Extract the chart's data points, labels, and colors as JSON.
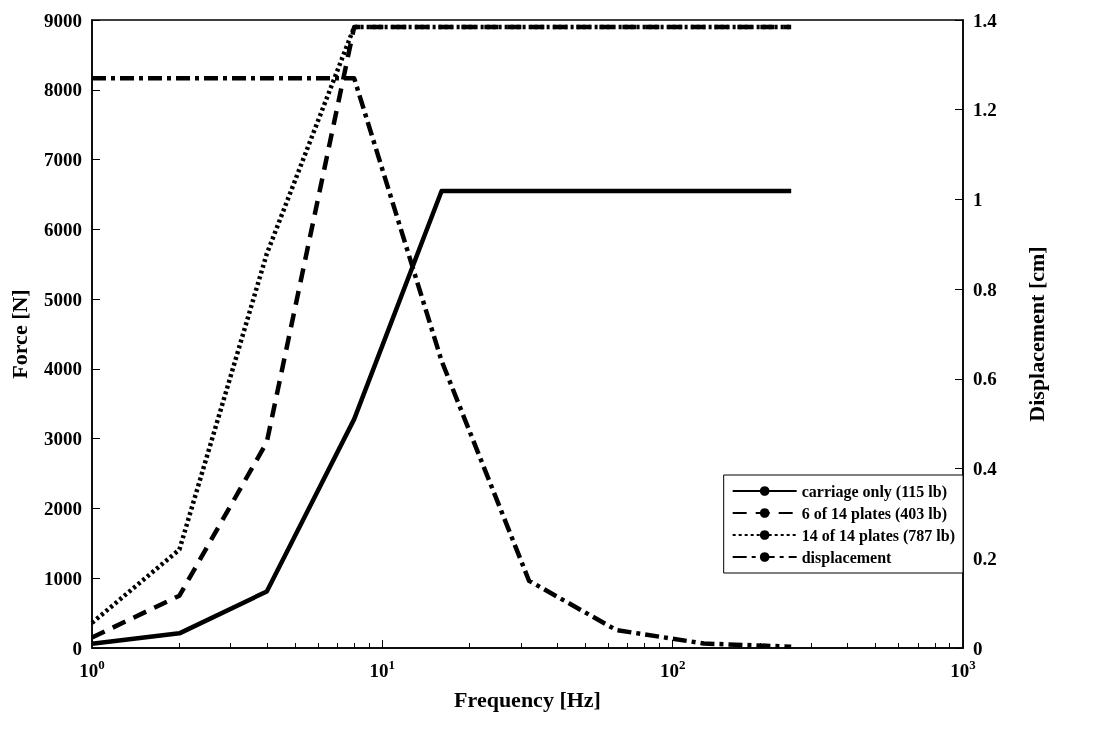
{
  "chart_data": {
    "type": "line",
    "xlabel": "Frequency [Hz]",
    "ylabel": "Force [N]",
    "y2label": "Displacement [cm]",
    "log": "x",
    "xlim": [
      1,
      1000
    ],
    "xticks": [
      {
        "value": 1,
        "label": "10$^{0}$"
      },
      {
        "value": 10,
        "label": "10$^{1}$"
      },
      {
        "value": 100,
        "label": "10$^{2}$"
      },
      {
        "value": 1000,
        "label": "10$^{3}$"
      }
    ],
    "ylim": [
      0,
      9000
    ],
    "yticks": [
      0,
      1000,
      2000,
      3000,
      4000,
      5000,
      6000,
      7000,
      8000,
      9000
    ],
    "y2lim": [
      0,
      1.4
    ],
    "y2ticks": [
      0,
      0.2,
      0.4,
      0.6,
      0.8,
      1,
      1.2,
      1.4
    ],
    "grid": false,
    "legend": "bottom right",
    "marker": "none",
    "series": [
      {
        "name": "carriage only (115 lb)",
        "color": "#000000",
        "line_style": "solid",
        "x": [
          1,
          2,
          4,
          8,
          16,
          32,
          64,
          128,
          256
        ],
        "values": [
          60,
          210,
          810,
          3280,
          6550,
          6550,
          6550,
          6550,
          6550
        ]
      },
      {
        "name": "6 of 14 plates (403 lb)",
        "color": "#000000",
        "line_style": "dashed",
        "x": [
          1,
          2,
          4,
          8,
          16,
          32,
          64,
          128,
          256
        ],
        "values": [
          150,
          750,
          2950,
          8900,
          8900,
          8900,
          8900,
          8900,
          8900
        ]
      },
      {
        "name": "14 of 14 plates (787 lb)",
        "color": "#000000",
        "line_style": "dotted",
        "x": [
          1,
          2,
          4,
          8,
          16,
          32,
          64,
          128,
          256
        ],
        "values": [
          360,
          1410,
          5650,
          8900,
          8900,
          8900,
          8900,
          8900,
          8900
        ]
      },
      {
        "name": "displacement",
        "color": "#000000",
        "line_style": "dashdot",
        "axis": "y2",
        "x": [
          1,
          2,
          4,
          8,
          16,
          32,
          64,
          128,
          256
        ],
        "values": [
          1.27,
          1.27,
          1.27,
          1.27,
          0.64,
          0.15,
          0.04,
          0.01,
          0.003
        ]
      }
    ]
  }
}
